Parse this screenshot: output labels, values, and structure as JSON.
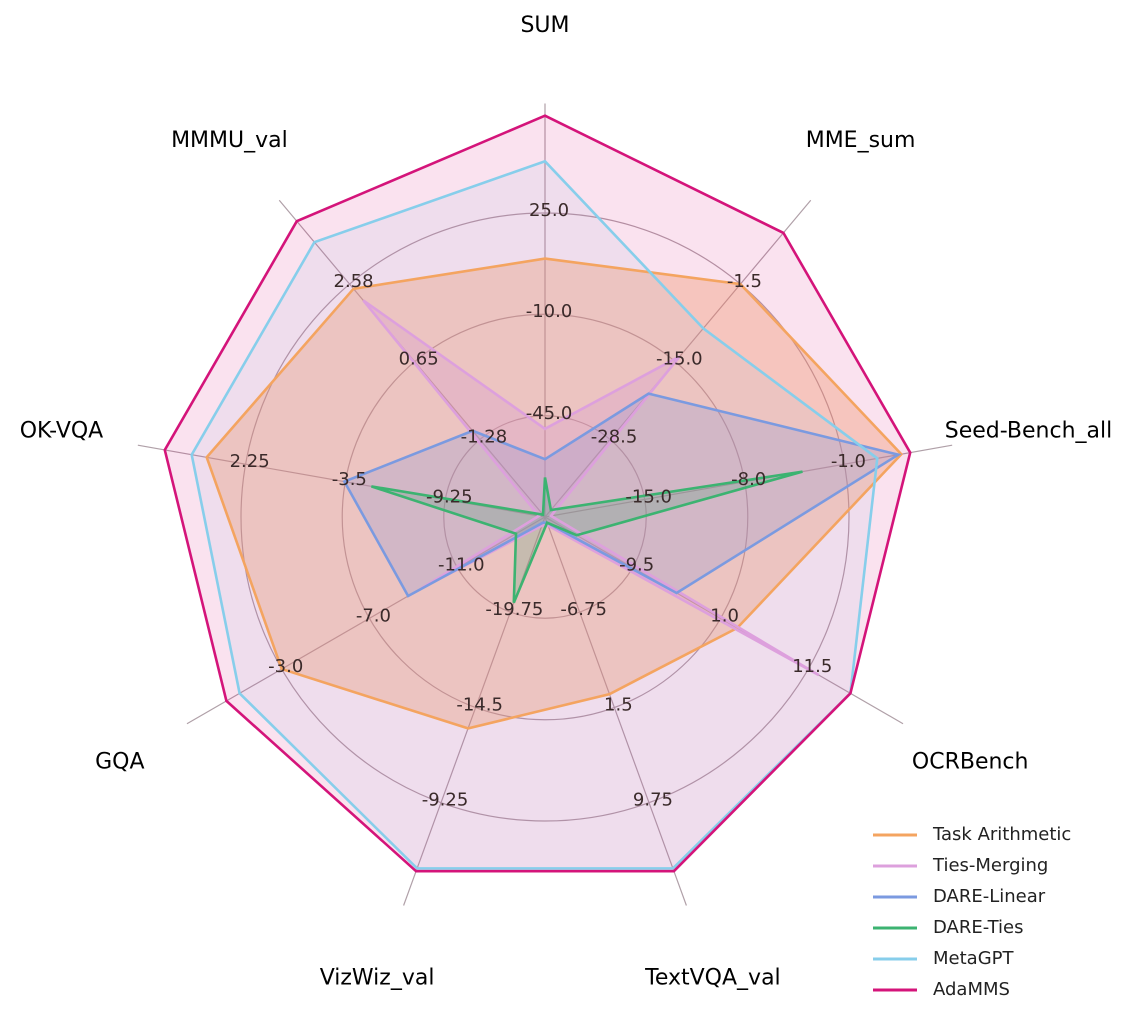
{
  "chart_data": {
    "type": "radar",
    "title": "",
    "axes": [
      {
        "name": "SUM",
        "ticks": [
          "-45.0",
          "-10.0",
          "25.0"
        ]
      },
      {
        "name": "MME_sum",
        "ticks": [
          "-28.5",
          "-15.0",
          "-1.5"
        ]
      },
      {
        "name": "Seed-Bench_all",
        "ticks": [
          "-15.0",
          "-8.0",
          "-1.0"
        ]
      },
      {
        "name": "OCRBench",
        "ticks": [
          "-9.5",
          "1.0",
          "11.5"
        ]
      },
      {
        "name": "TextVQA_val",
        "ticks": [
          "-6.75",
          "1.5",
          "9.75"
        ]
      },
      {
        "name": "VizWiz_val",
        "ticks": [
          "-19.75",
          "-14.5",
          "-9.25"
        ]
      },
      {
        "name": "GQA",
        "ticks": [
          "-11.0",
          "-7.0",
          "-3.0"
        ]
      },
      {
        "name": "OK-VQA",
        "ticks": [
          "-9.25",
          "-3.5",
          "2.25"
        ]
      },
      {
        "name": "MMMU_val",
        "ticks": [
          "-1.28",
          "0.65",
          "2.58"
        ]
      }
    ],
    "ring_fractions": [
      0.333,
      0.667,
      1.0
    ],
    "series": [
      {
        "name": "Task Arithmetic",
        "color": "#f4a460",
        "fill_opacity": 0.35,
        "values": [
          0.85,
          1.0,
          1.19,
          0.73,
          0.62,
          0.74,
          1.0,
          1.13,
          0.98
        ]
      },
      {
        "name": "Ties-Merging",
        "color": "#dda0dd",
        "fill_opacity": 0.25,
        "values": [
          0.29,
          0.69,
          0.02,
          1.04,
          0.03,
          0.03,
          0.47,
          0.02,
          0.93
        ]
      },
      {
        "name": "DARE-Linear",
        "color": "#7b9ae0",
        "fill_opacity": 0.25,
        "values": [
          0.19,
          0.53,
          1.18,
          0.5,
          0.02,
          0.02,
          0.52,
          0.67,
          0.37
        ]
      },
      {
        "name": "DARE-Ties",
        "color": "#3cb371",
        "fill_opacity": 0.25,
        "values": [
          0.13,
          0.03,
          0.86,
          0.12,
          0.02,
          0.3,
          0.11,
          0.58,
          0.01
        ]
      },
      {
        "name": "MetaGPT",
        "color": "#87ceeb",
        "fill_opacity": 0.1,
        "values": [
          1.17,
          0.81,
          1.11,
          1.16,
          1.23,
          1.23,
          1.16,
          1.18,
          1.18
        ]
      },
      {
        "name": "AdaMMS",
        "color": "#d4147a",
        "fill_opacity": 0.12,
        "values": [
          1.32,
          1.22,
          1.22,
          1.16,
          1.24,
          1.24,
          1.21,
          1.27,
          1.27
        ]
      }
    ],
    "legend_position": "bottom-right",
    "grid": true
  }
}
